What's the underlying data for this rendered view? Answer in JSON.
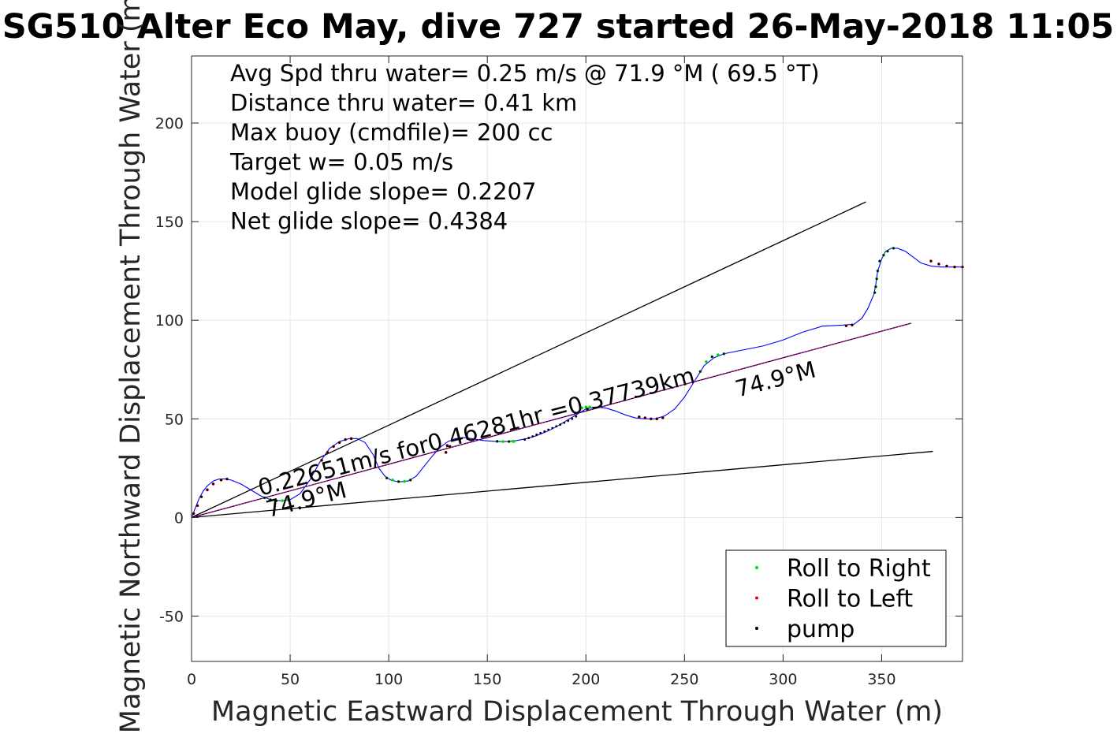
{
  "chart_data": {
    "type": "line",
    "title": "SG510 Alter Eco May, dive 727 started 26-May-2018 11:05",
    "xlabel": "Magnetic Eastward Displacement Through Water (m)",
    "ylabel": "Magnetic Northward Displacement Through Water (m)",
    "xlim": [
      0,
      391
    ],
    "ylim": [
      -73,
      234
    ],
    "xticks": [
      0,
      50,
      100,
      150,
      200,
      250,
      300,
      350
    ],
    "yticks": [
      -50,
      0,
      50,
      100,
      150,
      200
    ],
    "grid": true,
    "stats": [
      "Avg Spd thru water=  0.25 m/s @  71.9 °M ( 69.5 °T)",
      "Distance thru water=  0.41 km",
      "Max buoy (cmdfile)= 200 cc",
      "Target w= 0.05 m/s",
      "Model glide slope= 0.2207",
      "Net glide slope= 0.4384"
    ],
    "annotations": [
      {
        "text": "0.22651m/s for0.46281hr =0.37739km",
        "x": 35,
        "y": 11,
        "angle_deg": 14.6
      },
      {
        "text": "74.9°M",
        "x": 39,
        "y": 0,
        "angle_deg": 14.6
      },
      {
        "text": "74.9°M",
        "x": 277,
        "y": 61,
        "angle_deg": 14.6
      }
    ],
    "reference_lines": [
      {
        "name": "upper",
        "color": "#000000",
        "points": [
          [
            0,
            0
          ],
          [
            342,
            160
          ]
        ]
      },
      {
        "name": "lower",
        "color": "#000000",
        "points": [
          [
            0,
            0
          ],
          [
            376,
            33.5
          ]
        ]
      },
      {
        "name": "heading",
        "color": "#000000",
        "points": [
          [
            0,
            0
          ],
          [
            365,
            98.5
          ]
        ]
      }
    ],
    "series": [
      {
        "name": "track",
        "color": "#0000ff",
        "x": [
          0,
          2,
          4,
          6,
          8,
          11,
          14,
          17,
          20,
          25,
          30,
          35,
          40,
          45,
          50,
          55,
          60,
          65,
          70,
          75,
          80,
          84,
          88,
          92,
          95,
          98,
          101,
          105,
          110,
          114,
          118,
          122,
          126,
          130,
          134,
          138,
          142,
          148,
          155,
          160,
          165,
          170,
          175,
          180,
          185,
          190,
          195,
          200,
          205,
          210,
          215,
          220,
          225,
          230,
          235,
          240,
          245,
          250,
          255,
          260,
          265,
          270,
          280,
          290,
          300,
          310,
          320,
          330,
          336,
          340,
          343,
          346,
          347,
          348,
          350,
          352,
          355,
          358,
          362,
          366,
          370,
          375,
          380,
          385,
          391
        ],
        "y": [
          0,
          5,
          10,
          13.5,
          16,
          18.5,
          19.5,
          19.5,
          19,
          17,
          14,
          11,
          9,
          8.5,
          9,
          12,
          19,
          28,
          35,
          38.5,
          40,
          40,
          38,
          32,
          25,
          21,
          19,
          18,
          18.5,
          21,
          26,
          31,
          35.5,
          38.5,
          40,
          40.5,
          40,
          39,
          38.5,
          38.5,
          39,
          40,
          41.5,
          43.5,
          46,
          49,
          52,
          55,
          56,
          55.5,
          54,
          52,
          50.5,
          50,
          50,
          51.5,
          55,
          61,
          69,
          77,
          81,
          83,
          85,
          87,
          90,
          94,
          97,
          97.5,
          98,
          101,
          106,
          113,
          118,
          125,
          131,
          135,
          136.5,
          136.5,
          135,
          132,
          129,
          127.5,
          127,
          127,
          127
        ]
      },
      {
        "name": "heading-overlay",
        "color": "#cc00cc",
        "x": [
          0,
          365
        ],
        "y": [
          0,
          98.5
        ]
      },
      {
        "name": "Roll to Right",
        "color": "#00dd00",
        "x": [
          37,
          40,
          43,
          46,
          49,
          99,
          102,
          105,
          108,
          111,
          155,
          158,
          161,
          163,
          163.5,
          198,
          200,
          202,
          258,
          261,
          264,
          267,
          270,
          346.5,
          347,
          347.5,
          348,
          349,
          351,
          353,
          356
        ],
        "y": [
          10,
          9,
          8.5,
          8.5,
          9,
          20,
          19,
          18.2,
          18.3,
          19,
          38.6,
          38.5,
          38.5,
          38.6,
          38.6,
          55.5,
          56,
          56,
          74,
          79,
          81.5,
          82.5,
          83,
          114,
          117,
          121,
          125,
          130,
          133,
          135,
          136.5
        ]
      },
      {
        "name": "Roll to Left",
        "color": "#ee0000",
        "x": [
          1,
          3,
          5,
          8,
          11,
          15,
          18,
          66,
          69,
          72,
          75,
          78,
          81,
          129,
          131,
          136,
          140,
          227,
          230,
          233,
          236,
          239,
          332,
          335,
          375,
          379,
          383,
          387,
          391
        ],
        "y": [
          2,
          6,
          10.5,
          14,
          17,
          19,
          19.5,
          29,
          33,
          36,
          38,
          39.5,
          40,
          33,
          36,
          39.5,
          40,
          51,
          50.5,
          50,
          50,
          50.5,
          97.2,
          97.6,
          130,
          128.5,
          127.5,
          127,
          127
        ]
      },
      {
        "name": "pump",
        "color": "#000000",
        "x": [
          1,
          3,
          5,
          8,
          11,
          15,
          18,
          37,
          40,
          43,
          66,
          69,
          72,
          75,
          78,
          81,
          99,
          105,
          111,
          129,
          131,
          136,
          140,
          155,
          161,
          169,
          171,
          173,
          175,
          177,
          179,
          181,
          183,
          185,
          187,
          189,
          191,
          193,
          195,
          227,
          230,
          233,
          236,
          239,
          258,
          264,
          270,
          332,
          335,
          346.5,
          347,
          347.5,
          348,
          349,
          351,
          353,
          356,
          375,
          379,
          383,
          387,
          391
        ],
        "y": [
          2,
          6,
          10.5,
          14,
          17,
          19,
          19.5,
          10,
          9,
          8.5,
          29,
          33,
          36,
          38,
          39.5,
          40,
          20,
          18.2,
          19,
          33,
          36,
          39.5,
          40,
          38.6,
          38.5,
          39.5,
          40.3,
          41.1,
          42,
          42.8,
          43.6,
          44.5,
          45.3,
          46.2,
          47.1,
          48,
          49,
          50,
          51.2,
          51,
          50.5,
          50,
          50,
          50.5,
          74,
          81.5,
          83,
          97.2,
          97.6,
          114,
          117,
          121,
          125,
          130,
          133,
          135,
          136.5,
          130,
          128.5,
          127.5,
          127,
          127
        ]
      }
    ],
    "legend": {
      "position": "bottom-right",
      "entries": [
        {
          "label": "Roll to Right",
          "color": "#00dd00"
        },
        {
          "label": "Roll to Left",
          "color": "#ee0000"
        },
        {
          "label": "pump",
          "color": "#000000"
        }
      ]
    }
  }
}
